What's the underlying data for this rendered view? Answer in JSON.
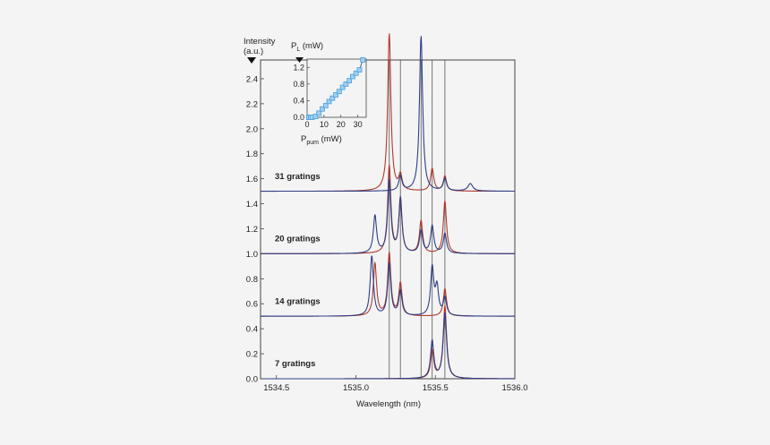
{
  "chart_data": [
    {
      "type": "line",
      "xlabel": "Wavelength (nm)",
      "ylabel": "Intensity (a.u.)",
      "ylabel_lines": [
        "Intensity",
        "(a.u.)"
      ],
      "xlim": [
        1534.4,
        1536.0
      ],
      "ylim": [
        0,
        2.55
      ],
      "xticks": [
        1534.5,
        1535.0,
        1535.5,
        1536.0
      ],
      "xtick_labels": [
        "1534.5",
        "1535.0",
        "1535.5",
        "1536.0"
      ],
      "yticks": [
        0,
        0.2,
        0.4,
        0.6,
        0.8,
        1.0,
        1.2,
        1.4,
        1.6,
        1.8,
        2.0,
        2.2,
        2.4
      ],
      "ytick_labels": [
        "0.0",
        "0.2",
        "0.4",
        "0.6",
        "0.8",
        "1.0",
        "1.2",
        "1.4",
        "1.6",
        "1.8",
        "2.0",
        "2.2",
        "2.4"
      ],
      "vertical_reference_lines": [
        1535.21,
        1535.28,
        1535.41,
        1535.48,
        1535.56
      ],
      "colors": {
        "red": "#b03a2e",
        "blue": "#2f3f86"
      },
      "traces": [
        {
          "label": "7 gratings",
          "baseline": 0.0,
          "series": [
            {
              "color": "red",
              "peaks": [
                [
                  1535.48,
                  0.22,
                  0.012
                ],
                [
                  1535.56,
                  0.58,
                  0.013
                ]
              ]
            },
            {
              "color": "blue",
              "peaks": [
                [
                  1535.48,
                  0.3,
                  0.012
                ],
                [
                  1535.56,
                  0.52,
                  0.013
                ]
              ]
            }
          ]
        },
        {
          "label": "14 gratings",
          "baseline": 0.5,
          "series": [
            {
              "color": "red",
              "peaks": [
                [
                  1535.12,
                  0.42,
                  0.012
                ],
                [
                  1535.21,
                  0.5,
                  0.012
                ],
                [
                  1535.28,
                  0.26,
                  0.012
                ],
                [
                  1535.56,
                  0.22,
                  0.012
                ]
              ]
            },
            {
              "color": "blue",
              "peaks": [
                [
                  1535.1,
                  0.48,
                  0.012
                ],
                [
                  1535.21,
                  0.42,
                  0.012
                ],
                [
                  1535.28,
                  0.2,
                  0.012
                ],
                [
                  1535.48,
                  0.38,
                  0.012
                ],
                [
                  1535.51,
                  0.22,
                  0.012
                ],
                [
                  1535.56,
                  0.14,
                  0.012
                ]
              ]
            }
          ]
        },
        {
          "label": "20 gratings",
          "baseline": 1.0,
          "series": [
            {
              "color": "red",
              "peaks": [
                [
                  1535.21,
                  0.7,
                  0.012
                ],
                [
                  1535.28,
                  0.42,
                  0.012
                ],
                [
                  1535.41,
                  0.26,
                  0.012
                ],
                [
                  1535.56,
                  0.42,
                  0.012
                ]
              ]
            },
            {
              "color": "blue",
              "peaks": [
                [
                  1535.12,
                  0.3,
                  0.012
                ],
                [
                  1535.21,
                  0.58,
                  0.012
                ],
                [
                  1535.28,
                  0.44,
                  0.012
                ],
                [
                  1535.41,
                  0.18,
                  0.012
                ],
                [
                  1535.48,
                  0.22,
                  0.012
                ],
                [
                  1535.56,
                  0.16,
                  0.012
                ]
              ]
            }
          ]
        },
        {
          "label": "31 gratings",
          "baseline": 1.5,
          "series": [
            {
              "color": "red",
              "peaks": [
                [
                  1535.21,
                  1.26,
                  0.012
                ],
                [
                  1535.28,
                  0.12,
                  0.012
                ],
                [
                  1535.48,
                  0.18,
                  0.012
                ],
                [
                  1535.56,
                  0.12,
                  0.012
                ]
              ]
            },
            {
              "color": "blue",
              "peaks": [
                [
                  1535.28,
                  0.12,
                  0.012
                ],
                [
                  1535.41,
                  1.24,
                  0.012
                ],
                [
                  1535.56,
                  0.1,
                  0.012
                ],
                [
                  1535.72,
                  0.06,
                  0.018
                ]
              ]
            }
          ]
        }
      ]
    },
    {
      "type": "scatter",
      "title": "P_L (mW)",
      "title_main": "P",
      "title_sub": "L",
      "title_rest": " (mW)",
      "xlabel_main": "P",
      "xlabel_sub": "pum",
      "xlabel_rest": " (mW)",
      "xlim": [
        0,
        35
      ],
      "ylim": [
        0,
        1.4
      ],
      "xticks": [
        0,
        10,
        20,
        30
      ],
      "yticks": [
        0.0,
        0.4,
        0.8,
        1.2
      ],
      "ytick_labels": [
        "0.0",
        "0.4",
        "0.8",
        "1.2"
      ],
      "marker_color": "#4a9fdc",
      "x": [
        1,
        2,
        3,
        5,
        7,
        9,
        11,
        13,
        15,
        17,
        19,
        21,
        23,
        25,
        27,
        29,
        31,
        33
      ],
      "y": [
        0.0,
        0.0,
        0.0,
        0.02,
        0.1,
        0.2,
        0.28,
        0.38,
        0.46,
        0.54,
        0.62,
        0.72,
        0.8,
        0.88,
        0.98,
        1.06,
        1.14,
        1.38
      ]
    }
  ]
}
